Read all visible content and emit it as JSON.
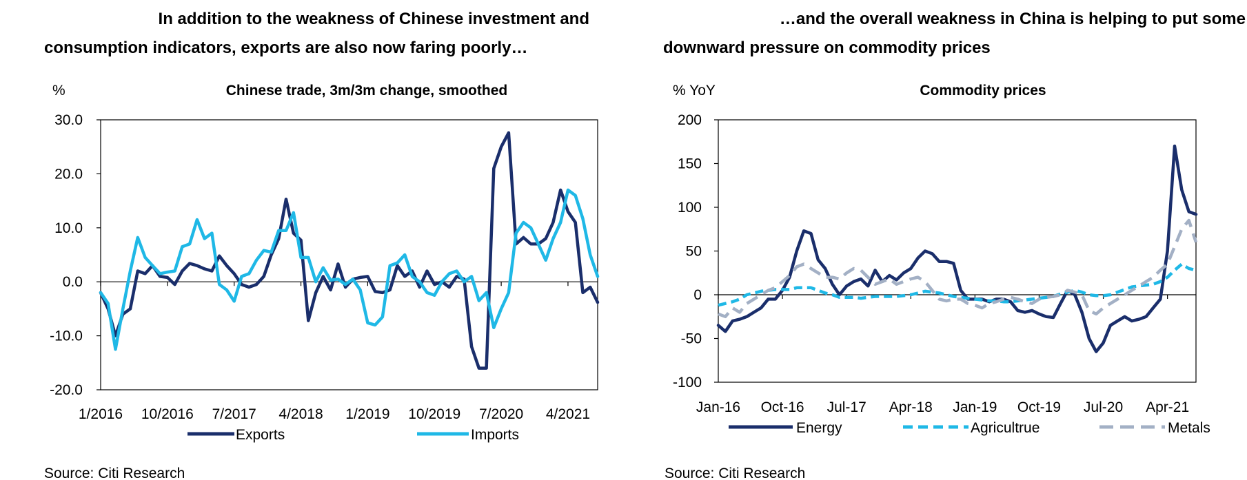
{
  "left": {
    "headline": [
      "In addition to the weakness of Chinese investment and",
      "consumption indicators, exports are also now faring poorly…"
    ],
    "source": "Source: Citi Research"
  },
  "right": {
    "headline": [
      "…and the overall weakness in China is helping to put some",
      "downward pressure on commodity prices"
    ],
    "source": "Source: Citi Research"
  },
  "colors": {
    "dark_navy": "#1a2e6b",
    "cyan": "#1fb8e6",
    "grey_blue": "#a3b0c5"
  },
  "chart_data": [
    {
      "type": "line",
      "title": "Chinese trade, 3m/3m change, smoothed",
      "ylabel": "%",
      "ylim": [
        -20,
        30
      ],
      "yticks": [
        "30.0",
        "20.0",
        "10.0",
        "0.0",
        "-10.0",
        "-20.0"
      ],
      "xtick_labels": [
        "1/2016",
        "10/2016",
        "7/2017",
        "4/2018",
        "1/2019",
        "10/2019",
        "7/2020",
        "4/2021"
      ],
      "x_start": "2016-01",
      "x_end": "2021-06",
      "legend": "bottom",
      "series": [
        {
          "name": "Exports",
          "color": "#1a2e6b",
          "style": "solid",
          "values": [
            -2,
            -5,
            -10,
            -6,
            -5,
            2,
            1.5,
            3,
            1,
            0.8,
            -0.5,
            2,
            3.4,
            3,
            2.4,
            2,
            4.8,
            3,
            1.5,
            -0.5,
            -1,
            -0.5,
            1,
            5,
            8,
            15.3,
            9,
            7.7,
            -7.2,
            -2,
            1,
            -1.5,
            3.3,
            -1,
            0.5,
            0.8,
            1,
            -1.8,
            -2,
            -1.5,
            3,
            1,
            2,
            -1,
            2,
            -0.5,
            0,
            -1,
            1,
            0.5,
            -12,
            -16,
            -16,
            21,
            25,
            27.6,
            7,
            8.2,
            7,
            7,
            8,
            11,
            17,
            13,
            11,
            -2,
            -1,
            -3.8
          ]
        },
        {
          "name": "Imports",
          "color": "#1fb8e6",
          "style": "solid",
          "values": [
            -2,
            -4,
            -12.5,
            -5,
            2,
            8.2,
            4.5,
            3,
            1.5,
            1.8,
            2,
            6.5,
            7,
            11.5,
            8,
            9,
            -0.5,
            -1.5,
            -3.6,
            1,
            1.5,
            4,
            5.8,
            5.5,
            9.5,
            9.5,
            12.8,
            4.5,
            4.5,
            0,
            2.6,
            0.3,
            0.5,
            -0.5,
            0.5,
            -1.5,
            -7.6,
            -8,
            -6.5,
            3,
            3.5,
            5,
            1,
            0,
            -2,
            -2.5,
            0,
            1.5,
            2,
            0,
            1,
            -3.5,
            -2,
            -8.5,
            -5,
            -2,
            9,
            11,
            10,
            7,
            4,
            8,
            11,
            17,
            16,
            11.7,
            5,
            1
          ]
        }
      ]
    },
    {
      "type": "line",
      "title": "Commodity prices",
      "ylabel": "% YoY",
      "ylim": [
        -100,
        200
      ],
      "yticks": [
        "200",
        "150",
        "100",
        "50",
        "0",
        "-50",
        "-100"
      ],
      "xtick_labels": [
        "Jan-16",
        "Oct-16",
        "Jul-17",
        "Apr-18",
        "Jan-19",
        "Oct-19",
        "Jul-20",
        "Apr-21"
      ],
      "x_start": "2016-01",
      "x_end": "2021-06",
      "legend": "bottom",
      "series": [
        {
          "name": "Energy",
          "color": "#1a2e6b",
          "style": "solid",
          "values": [
            -35,
            -42,
            -30,
            -28,
            -25,
            -20,
            -15,
            -5,
            -5,
            5,
            20,
            50,
            73,
            70,
            40,
            30,
            12,
            0,
            10,
            15,
            18,
            10,
            28,
            15,
            22,
            17,
            25,
            30,
            42,
            50,
            47,
            38,
            38,
            36,
            5,
            -5,
            -5,
            -5,
            -8,
            -5,
            -5,
            -8,
            -18,
            -20,
            -18,
            -22,
            -25,
            -26,
            -10,
            5,
            0,
            -20,
            -50,
            -65,
            -55,
            -35,
            -30,
            -25,
            -30,
            -28,
            -25,
            -15,
            -5,
            50,
            170,
            120,
            95,
            92
          ]
        },
        {
          "name": "Agricultrue",
          "color": "#1fb8e6",
          "style": "dashed",
          "values": [
            -12,
            -10,
            -8,
            -5,
            0,
            2,
            4,
            5,
            6,
            6,
            6,
            8,
            8,
            8,
            5,
            2,
            0,
            -3,
            -3,
            -3,
            -4,
            -3,
            -2,
            -2,
            -2,
            -2,
            -1,
            0,
            2,
            4,
            3,
            2,
            0,
            -2,
            -3,
            -4,
            -5,
            -6,
            -7,
            -7,
            -8,
            -8,
            -7,
            -6,
            -5,
            -4,
            -3,
            -2,
            1,
            3,
            5,
            3,
            0,
            -1,
            -1,
            0,
            3,
            6,
            9,
            10,
            11,
            12,
            15,
            20,
            28,
            35,
            30,
            28
          ]
        },
        {
          "name": "Metals",
          "color": "#a3b0c5",
          "style": "dashed",
          "values": [
            -22,
            -25,
            -15,
            -20,
            -10,
            -5,
            0,
            5,
            8,
            15,
            22,
            32,
            35,
            30,
            25,
            20,
            20,
            18,
            25,
            30,
            28,
            20,
            12,
            15,
            18,
            12,
            15,
            18,
            20,
            15,
            5,
            -5,
            -7,
            -5,
            -5,
            -10,
            -12,
            -15,
            -10,
            -8,
            -5,
            -3,
            -5,
            -8,
            -10,
            -5,
            -3,
            -2,
            0,
            5,
            3,
            0,
            -18,
            -22,
            -15,
            -10,
            -5,
            0,
            5,
            10,
            15,
            20,
            28,
            35,
            55,
            75,
            85,
            60
          ]
        }
      ]
    }
  ]
}
